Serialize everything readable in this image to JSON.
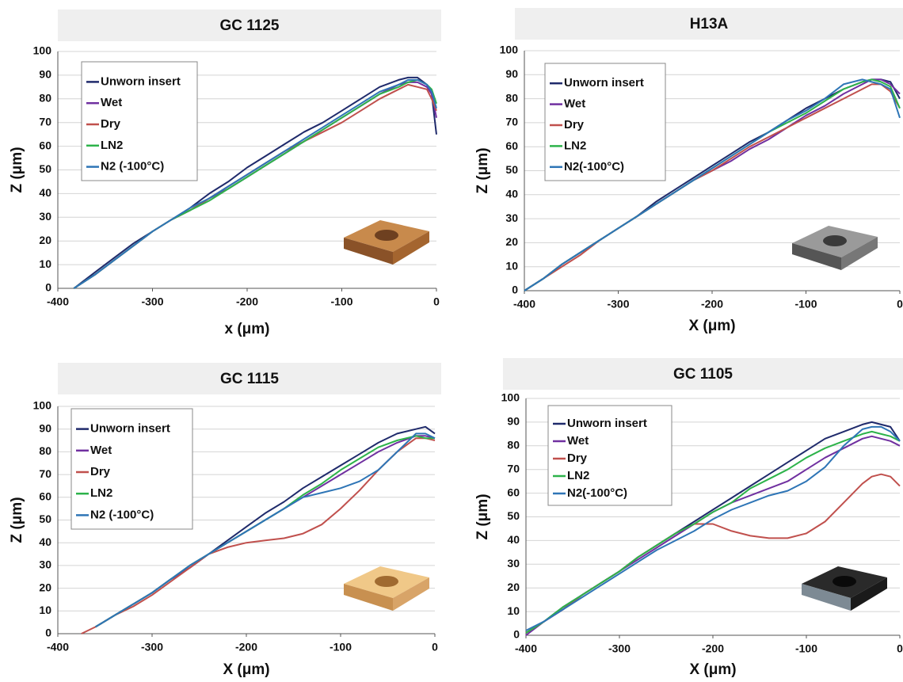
{
  "chart_data": [
    {
      "type": "line",
      "title": "GC 1125",
      "x_label": "x (μm)",
      "y_label": "Z (μm)",
      "x": [
        -383,
        -360,
        -340,
        -320,
        -300,
        -280,
        -260,
        -240,
        -220,
        -200,
        -180,
        -160,
        -140,
        -120,
        -100,
        -80,
        -60,
        -40,
        -30,
        -20,
        -10,
        -5,
        0
      ],
      "series": [
        {
          "name": "Unworn insert",
          "color": "#1f2a6b",
          "values": [
            0,
            7,
            13,
            19,
            24,
            29,
            34,
            40,
            45,
            51,
            56,
            61,
            66,
            70,
            75,
            80,
            85,
            88,
            89,
            89,
            86,
            82,
            65
          ]
        },
        {
          "name": "Wet",
          "color": "#7030a0",
          "values": [
            0,
            6,
            12,
            18,
            24,
            29,
            33,
            38,
            42,
            47,
            52,
            57,
            62,
            67,
            72,
            77,
            82,
            86,
            87,
            87,
            85,
            82,
            72
          ]
        },
        {
          "name": "Dry",
          "color": "#c0504d",
          "values": [
            0,
            6,
            12,
            18,
            24,
            29,
            33,
            38,
            43,
            48,
            53,
            58,
            62,
            66,
            70,
            75,
            80,
            84,
            86,
            85,
            84,
            80,
            75
          ]
        },
        {
          "name": "LN2",
          "color": "#2db34a",
          "values": [
            0,
            6,
            12,
            18,
            24,
            29,
            33,
            37,
            42,
            47,
            52,
            57,
            62,
            67,
            72,
            77,
            82,
            85,
            87,
            88,
            86,
            84,
            78
          ]
        },
        {
          "name": "N2 (-100°C)",
          "color": "#2e75b6",
          "values": [
            0,
            6,
            12,
            18,
            24,
            29,
            34,
            38,
            43,
            48,
            53,
            58,
            63,
            68,
            73,
            78,
            83,
            86,
            88,
            88,
            86,
            83,
            76
          ]
        }
      ],
      "xlim": [
        -400,
        0
      ],
      "ylim": [
        0,
        100
      ],
      "xticks": [
        -400,
        -300,
        -200,
        -100,
        0
      ],
      "yticks": [
        0,
        10,
        20,
        30,
        40,
        50,
        60,
        70,
        80,
        90,
        100
      ],
      "grid": true,
      "legend": "upper left"
    },
    {
      "type": "line",
      "title": "H13A",
      "x_label": "X (μm)",
      "y_label": "Z (μm)",
      "x": [
        -400,
        -380,
        -360,
        -340,
        -320,
        -300,
        -280,
        -260,
        -240,
        -220,
        -200,
        -180,
        -160,
        -140,
        -120,
        -100,
        -80,
        -60,
        -40,
        -30,
        -20,
        -10,
        0
      ],
      "series": [
        {
          "name": "Unworn insert",
          "color": "#1f2a6b",
          "values": [
            0,
            5,
            11,
            16,
            21,
            26,
            31,
            37,
            42,
            47,
            52,
            57,
            62,
            66,
            71,
            76,
            80,
            84,
            87,
            88,
            88,
            87,
            80
          ]
        },
        {
          "name": "Wet",
          "color": "#7030a0",
          "values": [
            0,
            5,
            11,
            16,
            21,
            26,
            31,
            36,
            41,
            46,
            50,
            54,
            59,
            63,
            68,
            73,
            77,
            82,
            86,
            88,
            88,
            86,
            82
          ]
        },
        {
          "name": "Dry",
          "color": "#c0504d",
          "values": [
            0,
            5,
            10,
            15,
            21,
            26,
            31,
            36,
            41,
            46,
            50,
            55,
            60,
            64,
            68,
            72,
            76,
            80,
            84,
            86,
            86,
            83,
            76
          ]
        },
        {
          "name": "LN2",
          "color": "#2db34a",
          "values": [
            0,
            5,
            11,
            16,
            21,
            26,
            31,
            36,
            41,
            46,
            51,
            56,
            61,
            66,
            70,
            74,
            79,
            84,
            87,
            88,
            87,
            85,
            76
          ]
        },
        {
          "name": "N2(-100°C)",
          "color": "#2e75b6",
          "values": [
            0,
            5,
            11,
            16,
            21,
            26,
            31,
            36,
            41,
            46,
            51,
            56,
            61,
            66,
            71,
            75,
            80,
            86,
            88,
            87,
            86,
            84,
            72
          ]
        }
      ],
      "xlim": [
        -400,
        0
      ],
      "ylim": [
        0,
        100
      ],
      "xticks": [
        -400,
        -300,
        -200,
        -100,
        0
      ],
      "yticks": [
        0,
        10,
        20,
        30,
        40,
        50,
        60,
        70,
        80,
        90,
        100
      ],
      "grid": true,
      "legend": "upper left"
    },
    {
      "type": "line",
      "title": "GC 1115",
      "x_label": "X (μm)",
      "y_label": "Z (μm)",
      "x": [
        -375,
        -360,
        -340,
        -320,
        -300,
        -280,
        -260,
        -240,
        -220,
        -200,
        -180,
        -160,
        -140,
        -120,
        -100,
        -80,
        -60,
        -40,
        -20,
        -10,
        0
      ],
      "series": [
        {
          "name": "Unworn insert",
          "color": "#1f2a6b",
          "values": [
            null,
            3,
            8,
            13,
            18,
            24,
            29,
            35,
            41,
            47,
            53,
            58,
            64,
            69,
            74,
            79,
            84,
            88,
            90,
            91,
            88
          ]
        },
        {
          "name": "Wet",
          "color": "#7030a0",
          "values": [
            null,
            3,
            8,
            13,
            18,
            24,
            29,
            35,
            40,
            45,
            50,
            55,
            60,
            65,
            70,
            75,
            80,
            84,
            87,
            87,
            86
          ]
        },
        {
          "name": "Dry",
          "color": "#c0504d",
          "values": [
            0,
            3,
            8,
            12,
            17,
            23,
            29,
            35,
            38,
            40,
            41,
            42,
            44,
            48,
            55,
            63,
            72,
            80,
            86,
            86,
            85
          ]
        },
        {
          "name": "LN2",
          "color": "#2db34a",
          "values": [
            null,
            3,
            8,
            13,
            18,
            24,
            30,
            35,
            40,
            45,
            50,
            55,
            61,
            66,
            72,
            77,
            82,
            85,
            87,
            86,
            86
          ]
        },
        {
          "name": "N2 (-100°C)",
          "color": "#2e75b6",
          "values": [
            null,
            3,
            8,
            13,
            18,
            24,
            30,
            35,
            40,
            45,
            50,
            55,
            60,
            62,
            64,
            67,
            72,
            80,
            88,
            88,
            86
          ]
        }
      ],
      "xlim": [
        -400,
        0
      ],
      "ylim": [
        0,
        100
      ],
      "xticks": [
        -400,
        -300,
        -200,
        -100,
        0
      ],
      "yticks": [
        0,
        10,
        20,
        30,
        40,
        50,
        60,
        70,
        80,
        90,
        100
      ],
      "grid": true,
      "legend": "upper left"
    },
    {
      "type": "line",
      "title": "GC 1105",
      "x_label": "X (μm)",
      "y_label": "Z (μm)",
      "x": [
        -400,
        -380,
        -360,
        -340,
        -320,
        -300,
        -280,
        -260,
        -240,
        -220,
        -200,
        -180,
        -160,
        -140,
        -120,
        -100,
        -80,
        -60,
        -40,
        -30,
        -20,
        -10,
        0
      ],
      "series": [
        {
          "name": "Unworn insert",
          "color": "#1f2a6b",
          "values": [
            1,
            6,
            12,
            17,
            22,
            27,
            33,
            38,
            43,
            48,
            53,
            58,
            63,
            68,
            73,
            78,
            83,
            86,
            89,
            90,
            89,
            88,
            82
          ]
        },
        {
          "name": "Wet",
          "color": "#7030a0",
          "values": [
            0,
            6,
            11,
            17,
            22,
            27,
            32,
            37,
            42,
            47,
            52,
            56,
            59,
            62,
            65,
            70,
            75,
            79,
            83,
            84,
            83,
            82,
            80
          ]
        },
        {
          "name": "Dry",
          "color": "#c0504d",
          "values": [
            1,
            6,
            11,
            17,
            22,
            27,
            33,
            38,
            43,
            47,
            47,
            44,
            42,
            41,
            41,
            43,
            48,
            56,
            64,
            67,
            68,
            67,
            63
          ]
        },
        {
          "name": "LN2",
          "color": "#2db34a",
          "values": [
            1,
            6,
            12,
            17,
            22,
            27,
            33,
            38,
            43,
            47,
            52,
            56,
            62,
            66,
            70,
            75,
            79,
            82,
            85,
            86,
            85,
            84,
            82
          ]
        },
        {
          "name": "N2(-100°C)",
          "color": "#2e75b6",
          "values": [
            2,
            6,
            11,
            16,
            21,
            26,
            31,
            36,
            40,
            44,
            49,
            53,
            56,
            59,
            61,
            65,
            71,
            80,
            87,
            88,
            88,
            86,
            82
          ]
        }
      ],
      "xlim": [
        -400,
        0
      ],
      "ylim": [
        0,
        100
      ],
      "xticks": [
        -400,
        -300,
        -200,
        -100,
        0
      ],
      "yticks": [
        0,
        10,
        20,
        30,
        40,
        50,
        60,
        70,
        80,
        90,
        100
      ],
      "grid": true,
      "legend": "upper left"
    }
  ]
}
